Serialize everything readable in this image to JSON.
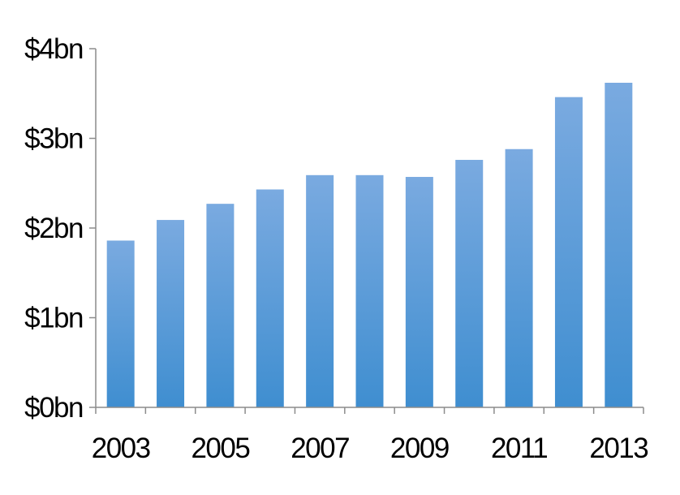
{
  "chart_data": {
    "type": "bar",
    "title": "",
    "xlabel": "",
    "ylabel": "",
    "categories": [
      "2003",
      "2004",
      "2005",
      "2006",
      "2007",
      "2008",
      "2009",
      "2010",
      "2011",
      "2012",
      "2013"
    ],
    "values": [
      1.86,
      2.09,
      2.27,
      2.43,
      2.59,
      2.59,
      2.57,
      2.76,
      2.88,
      3.46,
      3.62
    ],
    "x_tick_labels": [
      "2003",
      "2005",
      "2007",
      "2009",
      "2011",
      "2013"
    ],
    "y_ticks": [
      0,
      1,
      2,
      3,
      4
    ],
    "y_tick_labels": [
      "$0bn",
      "$1bn",
      "$2bn",
      "$3bn",
      "$4bn"
    ],
    "ylim": [
      0,
      4
    ],
    "grid": false,
    "legend": "none",
    "colors": {
      "bar_top": "#7aaae0",
      "bar_bottom": "#3f8ed0",
      "axis": "#8c8c8c"
    }
  }
}
